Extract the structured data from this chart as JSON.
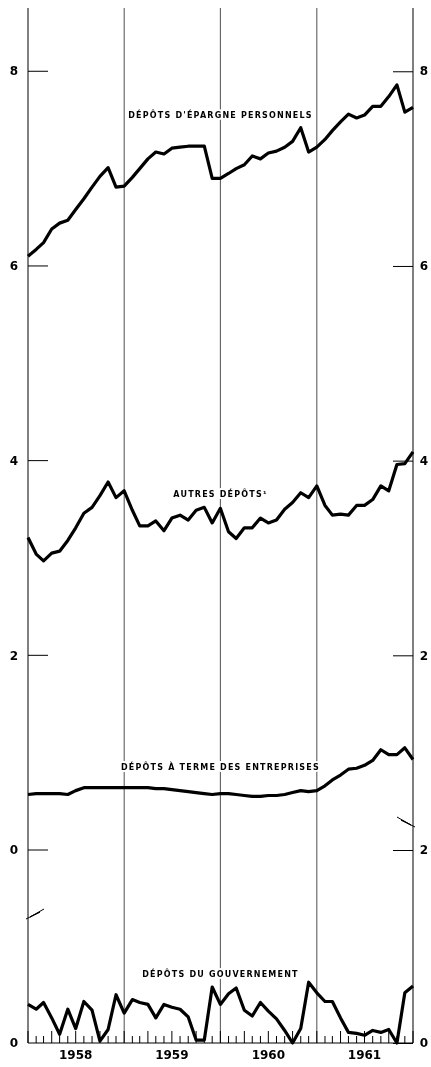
{
  "chart_data": [
    {
      "type": "line",
      "xlim": [
        "1958-01",
        "1962-01"
      ],
      "ylim": [
        0,
        8.65
      ],
      "yticks": [
        0,
        2,
        4,
        6,
        8
      ],
      "y2lim": [
        0,
        8.65
      ],
      "y2ticks": [
        2,
        4,
        6,
        8
      ],
      "tick_labels": "y",
      "x": [
        "1958-01",
        "1958-02",
        "1958-03",
        "1958-04",
        "1958-05",
        "1958-06",
        "1958-07",
        "1958-08",
        "1958-09",
        "1958-10",
        "1958-11",
        "1958-12",
        "1959-01",
        "1959-02",
        "1959-03",
        "1959-04",
        "1959-05",
        "1959-06",
        "1959-07",
        "1959-08",
        "1959-09",
        "1959-10",
        "1959-11",
        "1959-12",
        "1960-01",
        "1960-02",
        "1960-03",
        "1960-04",
        "1960-05",
        "1960-06",
        "1960-07",
        "1960-08",
        "1960-09",
        "1960-10",
        "1960-11",
        "1960-12",
        "1961-01",
        "1961-02",
        "1961-03",
        "1961-04",
        "1961-05",
        "1961-06",
        "1961-07",
        "1961-08",
        "1961-09",
        "1961-10",
        "1961-11",
        "1961-12",
        "1962-01"
      ],
      "ref_lines": [
        {
          "axis": "x",
          "value": "1959-01"
        },
        {
          "axis": "x",
          "value": "1960-01"
        },
        {
          "axis": "x",
          "value": "1961-01"
        }
      ],
      "series": [
        {
          "name": "DÉPÔTS D'ÉPARGNE PERSONNELS",
          "color": "#000000",
          "values": [
            6.1,
            6.17,
            6.24,
            6.38,
            6.44,
            6.47,
            6.58,
            6.69,
            6.81,
            6.92,
            7.01,
            6.81,
            6.82,
            6.91,
            7.0,
            7.1,
            7.17,
            7.15,
            7.21,
            7.22,
            7.23,
            7.23,
            7.23,
            6.9,
            6.9,
            6.95,
            7.0,
            7.04,
            7.13,
            7.1,
            7.16,
            7.18,
            7.22,
            7.28,
            7.42,
            7.17,
            7.22,
            7.3,
            7.39,
            7.48,
            7.56,
            7.52,
            7.55,
            7.64,
            7.64,
            7.74,
            7.86,
            7.58,
            7.63
          ]
        },
        {
          "name": "AUTRES DÉPÔTS¹",
          "color": "#000000",
          "values": [
            3.21,
            3.04,
            2.97,
            3.05,
            3.07,
            3.18,
            3.31,
            3.46,
            3.52,
            3.64,
            3.78,
            3.62,
            3.69,
            3.49,
            3.33,
            3.33,
            3.38,
            3.28,
            3.41,
            3.44,
            3.39,
            3.49,
            3.52,
            3.36,
            3.51,
            3.27,
            3.2,
            3.31,
            3.31,
            3.41,
            3.36,
            3.39,
            3.5,
            3.57,
            3.67,
            3.62,
            3.74,
            3.54,
            3.44,
            3.45,
            3.44,
            3.54,
            3.54,
            3.6,
            3.74,
            3.69,
            3.96,
            3.97,
            4.09
          ]
        },
        {
          "name": "DÉPÔTS À TERME DES ENTREPRISES",
          "color": "#000000",
          "values": [
            0.57,
            0.58,
            0.58,
            0.58,
            0.58,
            0.57,
            0.61,
            0.64,
            0.64,
            0.64,
            0.64,
            0.64,
            0.64,
            0.64,
            0.64,
            0.64,
            0.63,
            0.63,
            0.62,
            0.61,
            0.6,
            0.59,
            0.58,
            0.57,
            0.58,
            0.58,
            0.57,
            0.56,
            0.55,
            0.55,
            0.56,
            0.56,
            0.57,
            0.59,
            0.61,
            0.6,
            0.61,
            0.66,
            0.72,
            0.77,
            0.83,
            0.84,
            0.87,
            0.92,
            1.03,
            0.98,
            0.98,
            1.05,
            0.93
          ]
        }
      ]
    },
    {
      "type": "line",
      "xlim": [
        "1958-01",
        "1962-01"
      ],
      "y2lim": [
        0,
        2
      ],
      "annotations": [
        "0"
      ],
      "y2ticks": [
        0,
        2
      ],
      "xticks": [
        {
          "value": "1958-01",
          "label": null
        },
        {
          "value": "1958-02",
          "label": null
        },
        {
          "value": "1958-03",
          "label": null
        },
        {
          "value": "1958-04",
          "label": null
        },
        {
          "value": "1958-05",
          "label": null
        },
        {
          "value": "1958-06",
          "label": null
        },
        {
          "value": "1958-07",
          "label": "1958"
        },
        {
          "value": "1958-08",
          "label": null
        },
        {
          "value": "1958-09",
          "label": null
        },
        {
          "value": "1958-10",
          "label": null
        },
        {
          "value": "1958-11",
          "label": null
        },
        {
          "value": "1958-12",
          "label": null
        },
        {
          "value": "1959-01",
          "label": null
        },
        {
          "value": "1959-02",
          "label": null
        },
        {
          "value": "1959-03",
          "label": null
        },
        {
          "value": "1959-04",
          "label": null
        },
        {
          "value": "1959-05",
          "label": null
        },
        {
          "value": "1959-06",
          "label": null
        },
        {
          "value": "1959-07",
          "label": "1959"
        },
        {
          "value": "1959-08",
          "label": null
        },
        {
          "value": "1959-09",
          "label": null
        },
        {
          "value": "1959-10",
          "label": null
        },
        {
          "value": "1959-11",
          "label": null
        },
        {
          "value": "1959-12",
          "label": null
        },
        {
          "value": "1960-01",
          "label": null
        },
        {
          "value": "1960-02",
          "label": null
        },
        {
          "value": "1960-03",
          "label": null
        },
        {
          "value": "1960-04",
          "label": null
        },
        {
          "value": "1960-05",
          "label": null
        },
        {
          "value": "1960-06",
          "label": null
        },
        {
          "value": "1960-07",
          "label": "1960"
        },
        {
          "value": "1960-08",
          "label": null
        },
        {
          "value": "1960-09",
          "label": null
        },
        {
          "value": "1960-10",
          "label": null
        },
        {
          "value": "1960-11",
          "label": null
        },
        {
          "value": "1960-12",
          "label": null
        },
        {
          "value": "1961-01",
          "label": null
        },
        {
          "value": "1961-02",
          "label": null
        },
        {
          "value": "1961-03",
          "label": null
        },
        {
          "value": "1961-04",
          "label": null
        },
        {
          "value": "1961-05",
          "label": null
        },
        {
          "value": "1961-06",
          "label": null
        },
        {
          "value": "1961-07",
          "label": "1961"
        },
        {
          "value": "1961-08",
          "label": null
        },
        {
          "value": "1961-09",
          "label": null
        },
        {
          "value": "1961-10",
          "label": null
        },
        {
          "value": "1961-11",
          "label": null
        },
        {
          "value": "1961-12",
          "label": null
        },
        {
          "value": "1962-01",
          "label": null
        }
      ],
      "x": [
        "1958-01",
        "1958-02",
        "1958-03",
        "1958-04",
        "1958-05",
        "1958-06",
        "1958-07",
        "1958-08",
        "1958-09",
        "1958-10",
        "1958-11",
        "1958-12",
        "1959-01",
        "1959-02",
        "1959-03",
        "1959-04",
        "1959-05",
        "1959-06",
        "1959-07",
        "1959-08",
        "1959-09",
        "1959-10",
        "1959-11",
        "1959-12",
        "1960-01",
        "1960-02",
        "1960-03",
        "1960-04",
        "1960-05",
        "1960-06",
        "1960-07",
        "1960-08",
        "1960-09",
        "1960-10",
        "1960-11",
        "1960-12",
        "1961-01",
        "1961-02",
        "1961-03",
        "1961-04",
        "1961-05",
        "1961-06",
        "1961-07",
        "1961-08",
        "1961-09",
        "1961-10",
        "1961-11",
        "1961-12",
        "1962-01"
      ],
      "ref_lines": [
        {
          "axis": "x",
          "value": "1959-01"
        },
        {
          "axis": "x",
          "value": "1960-01"
        },
        {
          "axis": "x",
          "value": "1961-01"
        }
      ],
      "series": [
        {
          "name": "DÉPÔTS DU GOUVERNEMENT",
          "color": "#000000",
          "axis": "y2",
          "values": [
            0.4,
            0.35,
            0.42,
            0.26,
            0.09,
            0.35,
            0.15,
            0.43,
            0.34,
            0.02,
            0.14,
            0.5,
            0.31,
            0.45,
            0.42,
            0.4,
            0.26,
            0.4,
            0.37,
            0.35,
            0.27,
            0.03,
            0.03,
            0.58,
            0.4,
            0.51,
            0.57,
            0.34,
            0.28,
            0.42,
            0.33,
            0.25,
            0.13,
            0.0,
            0.15,
            0.63,
            0.52,
            0.43,
            0.43,
            0.26,
            0.11,
            0.1,
            0.08,
            0.13,
            0.11,
            0.14,
            0.0,
            0.52,
            0.59
          ]
        }
      ]
    }
  ]
}
